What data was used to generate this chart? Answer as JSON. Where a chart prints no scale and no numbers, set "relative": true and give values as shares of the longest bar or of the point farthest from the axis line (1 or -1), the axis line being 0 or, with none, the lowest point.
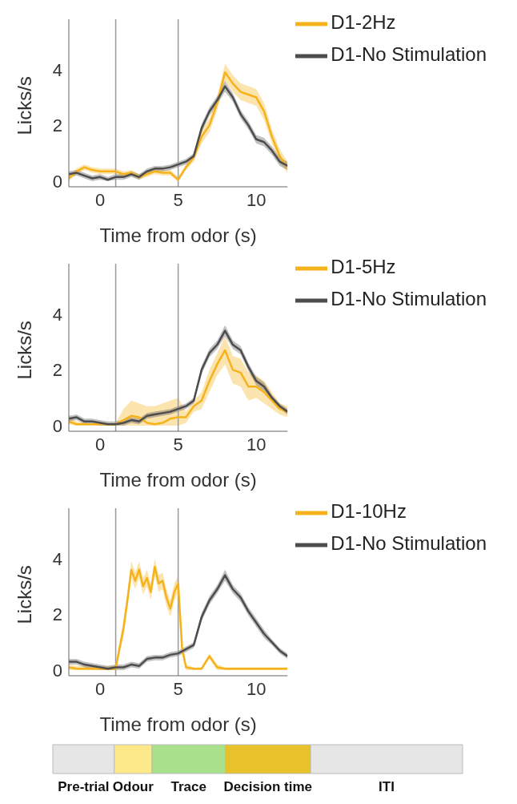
{
  "chart_data": [
    {
      "type": "line",
      "xlabel": "Time from odor (s)",
      "ylabel": "Licks/s",
      "xlim": [
        -2,
        12
      ],
      "xticks": [
        0,
        5,
        10
      ],
      "ylim": [
        -0.2,
        5.8
      ],
      "yticks": [
        0,
        2,
        4
      ],
      "legend": "top right",
      "ref_lines": [
        {
          "axis": "x",
          "value": 1,
          "color": "#999999"
        },
        {
          "axis": "x",
          "value": 5,
          "color": "#999999"
        }
      ],
      "series": [
        {
          "name": "D1-2Hz",
          "color": "#f5b21b",
          "x": [
            -2,
            -1.5,
            -1,
            -0.5,
            0,
            0.5,
            1,
            1.5,
            2,
            2.5,
            3,
            3.5,
            4,
            4.5,
            5,
            5.5,
            6,
            6.5,
            7,
            7.5,
            8,
            8.5,
            9,
            9.5,
            10,
            10.5,
            11,
            11.5,
            12
          ],
          "values": [
            0.1,
            0.35,
            0.5,
            0.4,
            0.35,
            0.35,
            0.35,
            0.25,
            0.3,
            0.15,
            0.25,
            0.35,
            0.3,
            0.3,
            0.05,
            0.5,
            0.85,
            1.6,
            2.0,
            2.8,
            3.9,
            3.5,
            3.2,
            3.1,
            3.0,
            2.5,
            1.6,
            0.9,
            0.5
          ],
          "lower": [
            0.0,
            0.25,
            0.4,
            0.3,
            0.25,
            0.25,
            0.25,
            0.15,
            0.2,
            0.05,
            0.15,
            0.25,
            0.2,
            0.2,
            0.0,
            0.4,
            0.7,
            1.35,
            1.75,
            2.55,
            3.6,
            3.2,
            2.9,
            2.8,
            2.7,
            2.2,
            1.35,
            0.65,
            0.3
          ],
          "upper": [
            0.2,
            0.45,
            0.6,
            0.5,
            0.45,
            0.45,
            0.45,
            0.35,
            0.4,
            0.25,
            0.35,
            0.45,
            0.4,
            0.4,
            0.15,
            0.6,
            1.0,
            1.85,
            2.25,
            3.05,
            4.2,
            3.8,
            3.5,
            3.4,
            3.3,
            2.8,
            1.85,
            1.15,
            0.7
          ]
        },
        {
          "name": "D1-No Stimulation",
          "color": "#4d4d4d",
          "x": [
            -2,
            -1.5,
            -1,
            -0.5,
            0,
            0.5,
            1,
            1.5,
            2,
            2.5,
            3,
            3.5,
            4,
            4.5,
            5,
            5.5,
            6,
            6.5,
            7,
            7.5,
            8,
            8.5,
            9,
            9.5,
            10,
            10.5,
            11,
            11.5,
            12
          ],
          "values": [
            0.25,
            0.3,
            0.2,
            0.1,
            0.15,
            0.05,
            0.15,
            0.15,
            0.25,
            0.15,
            0.35,
            0.45,
            0.45,
            0.5,
            0.6,
            0.7,
            0.9,
            1.9,
            2.5,
            2.9,
            3.4,
            3.0,
            2.4,
            2.0,
            1.5,
            1.4,
            1.1,
            0.7,
            0.55
          ],
          "lower": [
            0.15,
            0.2,
            0.1,
            0.0,
            0.05,
            0.0,
            0.05,
            0.05,
            0.15,
            0.05,
            0.25,
            0.35,
            0.35,
            0.4,
            0.5,
            0.6,
            0.8,
            1.75,
            2.35,
            2.75,
            3.2,
            2.85,
            2.25,
            1.85,
            1.35,
            1.25,
            0.95,
            0.55,
            0.4
          ],
          "upper": [
            0.35,
            0.4,
            0.3,
            0.2,
            0.25,
            0.15,
            0.25,
            0.25,
            0.35,
            0.25,
            0.45,
            0.55,
            0.55,
            0.6,
            0.7,
            0.8,
            1.0,
            2.05,
            2.65,
            3.05,
            3.6,
            3.15,
            2.55,
            2.15,
            1.65,
            1.55,
            1.25,
            0.85,
            0.7
          ]
        }
      ]
    },
    {
      "type": "line",
      "xlabel": "Time from odor (s)",
      "ylabel": "Licks/s",
      "xlim": [
        -2,
        12
      ],
      "xticks": [
        0,
        5,
        10
      ],
      "ylim": [
        -0.2,
        5.8
      ],
      "yticks": [
        0,
        2,
        4
      ],
      "legend": "top right",
      "ref_lines": [
        {
          "axis": "x",
          "value": 1,
          "color": "#999999"
        },
        {
          "axis": "x",
          "value": 5,
          "color": "#999999"
        }
      ],
      "series": [
        {
          "name": "D1-5Hz",
          "color": "#f5b21b",
          "x": [
            -2,
            -1.5,
            -1,
            -0.5,
            0,
            0.5,
            1,
            1.5,
            2,
            2.5,
            3,
            3.5,
            4,
            4.5,
            5,
            5.5,
            6,
            6.5,
            7,
            7.5,
            8,
            8.5,
            9,
            9.5,
            10,
            10.5,
            11,
            11.5,
            12
          ],
          "values": [
            0.15,
            0.05,
            0.05,
            0.05,
            0.05,
            0.05,
            0.05,
            0.2,
            0.35,
            0.3,
            0.1,
            0.05,
            0.1,
            0.25,
            0.3,
            0.3,
            0.7,
            0.9,
            1.6,
            2.2,
            2.7,
            2.0,
            1.9,
            1.4,
            1.4,
            1.2,
            0.9,
            0.6,
            0.5
          ],
          "lower": [
            0.05,
            0.0,
            0.0,
            0.0,
            0.0,
            0.0,
            0.0,
            0.0,
            0.0,
            0.0,
            0.0,
            0.0,
            0.0,
            0.0,
            0.0,
            0.1,
            0.5,
            0.6,
            1.2,
            1.8,
            2.2,
            1.5,
            1.4,
            0.9,
            1.0,
            0.8,
            0.6,
            0.4,
            0.3
          ],
          "upper": [
            0.3,
            0.15,
            0.1,
            0.1,
            0.1,
            0.1,
            0.1,
            0.6,
            0.9,
            0.8,
            0.7,
            0.7,
            0.8,
            0.9,
            1.0,
            0.5,
            0.9,
            1.2,
            2.0,
            2.6,
            3.2,
            2.5,
            2.4,
            1.9,
            1.8,
            1.6,
            1.2,
            0.8,
            0.7
          ]
        },
        {
          "name": "D1-No Stimulation",
          "color": "#4d4d4d",
          "x": [
            -2,
            -1.5,
            -1,
            -0.5,
            0,
            0.5,
            1,
            1.5,
            2,
            2.5,
            3,
            3.5,
            4,
            4.5,
            5,
            5.5,
            6,
            6.5,
            7,
            7.5,
            8,
            8.5,
            9,
            9.5,
            10,
            10.5,
            11,
            11.5,
            12
          ],
          "values": [
            0.25,
            0.3,
            0.15,
            0.15,
            0.1,
            0.05,
            0.05,
            0.1,
            0.2,
            0.15,
            0.35,
            0.4,
            0.45,
            0.5,
            0.6,
            0.7,
            0.9,
            2.0,
            2.6,
            2.9,
            3.4,
            2.9,
            2.7,
            2.1,
            1.6,
            1.4,
            1.0,
            0.7,
            0.5
          ],
          "lower": [
            0.15,
            0.2,
            0.05,
            0.05,
            0.0,
            0.0,
            0.0,
            0.0,
            0.1,
            0.05,
            0.25,
            0.3,
            0.35,
            0.4,
            0.5,
            0.6,
            0.8,
            1.85,
            2.45,
            2.75,
            3.2,
            2.75,
            2.55,
            1.95,
            1.45,
            1.25,
            0.9,
            0.6,
            0.4
          ],
          "upper": [
            0.35,
            0.4,
            0.25,
            0.25,
            0.2,
            0.15,
            0.15,
            0.2,
            0.3,
            0.25,
            0.45,
            0.5,
            0.55,
            0.6,
            0.7,
            0.8,
            1.0,
            2.15,
            2.75,
            3.05,
            3.6,
            3.05,
            2.85,
            2.25,
            1.75,
            1.55,
            1.1,
            0.8,
            0.6
          ]
        }
      ]
    },
    {
      "type": "line",
      "xlabel": "Time from odor (s)",
      "ylabel": "Licks/s",
      "xlim": [
        -2,
        12
      ],
      "xticks": [
        0,
        5,
        10
      ],
      "ylim": [
        -0.2,
        5.8
      ],
      "yticks": [
        0,
        2,
        4
      ],
      "legend": "top right",
      "ref_lines": [
        {
          "axis": "x",
          "value": 1,
          "color": "#999999"
        },
        {
          "axis": "x",
          "value": 5,
          "color": "#999999"
        }
      ],
      "series": [
        {
          "name": "D1-10Hz",
          "color": "#f5b21b",
          "x": [
            -2,
            -1.5,
            -1,
            -0.5,
            0,
            0.5,
            1,
            1.25,
            1.5,
            1.75,
            2,
            2.25,
            2.5,
            2.75,
            3,
            3.25,
            3.5,
            3.75,
            4,
            4.25,
            4.5,
            4.75,
            5,
            5.25,
            5.5,
            6,
            6.5,
            7,
            7.5,
            8,
            9,
            10,
            11,
            12
          ],
          "values": [
            0.1,
            0.05,
            0.05,
            0.05,
            0.05,
            0.05,
            0.05,
            0.8,
            1.5,
            2.5,
            3.6,
            3.2,
            3.6,
            3.0,
            3.3,
            2.8,
            3.7,
            3.1,
            3.2,
            2.6,
            2.2,
            2.8,
            3.1,
            0.8,
            0.1,
            0.05,
            0.05,
            0.5,
            0.1,
            0.05,
            0.05,
            0.05,
            0.05,
            0.05
          ],
          "lower": [
            0.0,
            0.0,
            0.0,
            0.0,
            0.0,
            0.0,
            0.0,
            0.6,
            1.2,
            2.2,
            3.3,
            2.9,
            3.3,
            2.7,
            3.0,
            2.5,
            3.4,
            2.8,
            2.9,
            2.3,
            1.9,
            2.5,
            2.8,
            0.6,
            0.0,
            0.0,
            0.0,
            0.4,
            0.0,
            0.0,
            0.0,
            0.0,
            0.0,
            0.0
          ],
          "upper": [
            0.2,
            0.15,
            0.15,
            0.15,
            0.15,
            0.15,
            0.15,
            1.0,
            1.8,
            2.8,
            3.9,
            3.5,
            3.9,
            3.3,
            3.6,
            3.1,
            4.0,
            3.4,
            3.5,
            2.9,
            2.5,
            3.1,
            3.4,
            1.0,
            0.2,
            0.1,
            0.1,
            0.6,
            0.2,
            0.1,
            0.1,
            0.1,
            0.1,
            0.1
          ]
        },
        {
          "name": "D1-No Stimulation",
          "color": "#4d4d4d",
          "x": [
            -2,
            -1.5,
            -1,
            -0.5,
            0,
            0.5,
            1,
            1.5,
            2,
            2.5,
            3,
            3.5,
            4,
            4.5,
            5,
            5.5,
            6,
            6.5,
            7,
            7.5,
            8,
            8.5,
            9,
            9.5,
            10,
            10.5,
            11,
            11.5,
            12
          ],
          "values": [
            0.3,
            0.3,
            0.2,
            0.15,
            0.1,
            0.05,
            0.1,
            0.1,
            0.2,
            0.15,
            0.4,
            0.45,
            0.45,
            0.55,
            0.6,
            0.75,
            0.9,
            1.9,
            2.5,
            2.9,
            3.4,
            2.9,
            2.6,
            2.1,
            1.7,
            1.3,
            1.0,
            0.7,
            0.5
          ],
          "lower": [
            0.2,
            0.2,
            0.1,
            0.05,
            0.0,
            0.0,
            0.0,
            0.0,
            0.1,
            0.05,
            0.3,
            0.35,
            0.35,
            0.45,
            0.5,
            0.65,
            0.8,
            1.75,
            2.35,
            2.75,
            3.2,
            2.75,
            2.45,
            1.95,
            1.55,
            1.15,
            0.9,
            0.6,
            0.4
          ],
          "upper": [
            0.4,
            0.4,
            0.3,
            0.25,
            0.2,
            0.15,
            0.2,
            0.2,
            0.3,
            0.25,
            0.5,
            0.55,
            0.55,
            0.65,
            0.7,
            0.85,
            1.0,
            2.05,
            2.65,
            3.05,
            3.6,
            3.05,
            2.75,
            2.25,
            1.85,
            1.45,
            1.1,
            0.8,
            0.6
          ]
        }
      ]
    },
    {
      "type": "bar",
      "orientation": "horizontal",
      "stacked": true,
      "relative": true,
      "categories": [
        null
      ],
      "series": [
        {
          "name": "Pre-trial",
          "color": "#e6e6e6",
          "values": [
            0.15
          ]
        },
        {
          "name": "Odour",
          "color": "#fde98a",
          "values": [
            0.092
          ]
        },
        {
          "name": "Trace",
          "color": "#a8e08c",
          "values": [
            0.179
          ]
        },
        {
          "name": "Decision time",
          "color": "#e8c22a",
          "values": [
            0.208
          ]
        },
        {
          "name": "ITI",
          "color": "#e6e6e6",
          "values": [
            0.371
          ]
        }
      ]
    }
  ]
}
